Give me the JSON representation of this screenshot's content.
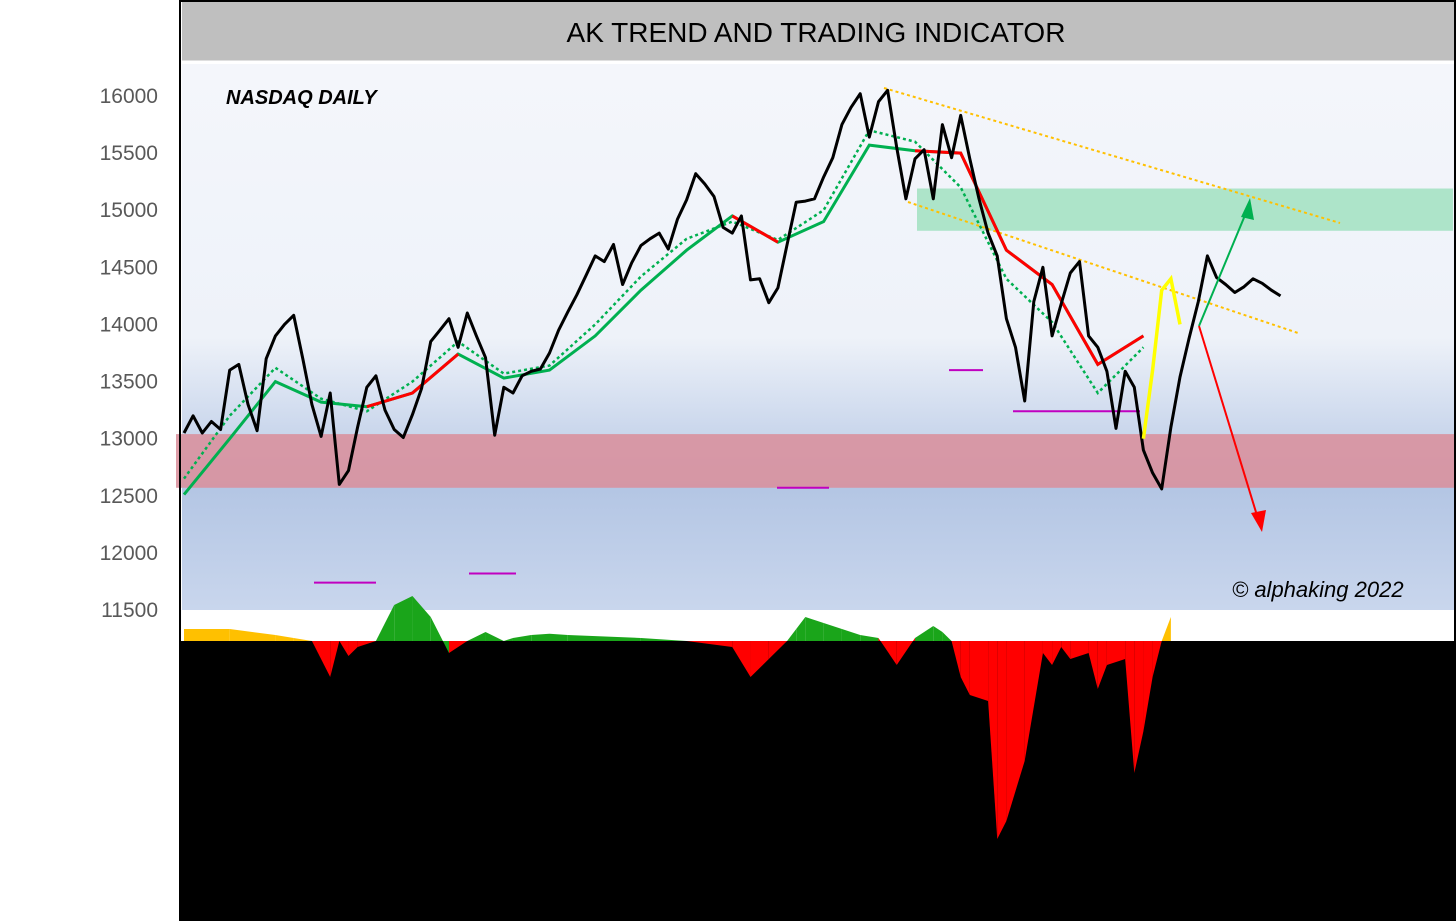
{
  "title": "AK TREND AND TRADING INDICATOR",
  "chart_data": {
    "type": "line",
    "title": "AK TREND AND TRADING INDICATOR",
    "subtitle": "NASDAQ DAILY",
    "annotation": "© alphaking 2022",
    "ylim": [
      11500,
      16300
    ],
    "yticks": [
      "16000",
      "15500",
      "15000",
      "14500",
      "14000",
      "13500",
      "13000",
      "12500",
      "12000",
      "11500"
    ],
    "grid": false,
    "legend": "none",
    "colors": {
      "price": "#000000",
      "trend_up": "#00b050",
      "trend_down": "#ff0000",
      "projection": "#ffff00",
      "channel": "#ffc000",
      "support_band": "#d9909c",
      "resistance_band": "#a9e3c6",
      "osc_positive": "#1aa51a",
      "osc_negative": "#ff0000",
      "osc_neutral": "#ffc000",
      "marker": "#c000c0"
    },
    "zones": [
      {
        "name": "resistance",
        "y_from": 14820,
        "y_to": 15190
      },
      {
        "name": "support",
        "y_from": 12570,
        "y_to": 13040
      }
    ],
    "levels": [
      12570,
      13600,
      13240,
      11740,
      11820
    ],
    "series": [
      {
        "role": "price",
        "x": [
          0,
          2,
          4,
          6,
          8,
          10,
          12,
          14,
          16,
          18,
          20,
          22,
          24,
          26,
          28,
          30,
          32,
          34,
          36,
          38,
          40,
          42,
          44,
          46,
          48,
          50,
          52,
          54,
          56,
          58,
          60,
          62,
          64,
          66,
          68,
          70,
          72,
          74,
          76,
          78,
          80,
          82,
          84,
          86,
          88,
          90,
          92,
          94,
          96,
          98,
          100,
          102,
          104,
          106,
          108,
          110,
          112,
          114,
          116,
          118,
          120,
          122,
          124,
          126,
          128,
          130,
          132,
          134,
          136,
          138,
          140,
          142,
          144,
          146,
          148,
          150,
          152,
          154,
          156,
          158,
          160,
          162,
          164,
          166,
          168,
          170,
          172,
          174,
          176,
          178,
          180,
          182,
          184,
          186,
          188,
          190,
          192,
          194,
          196,
          198,
          200,
          202,
          204,
          206,
          208,
          210,
          212,
          214,
          216,
          218,
          220,
          222,
          224,
          226,
          228,
          230,
          232,
          234,
          236,
          238,
          240
        ],
        "values": [
          13050,
          13200,
          13050,
          13150,
          13080,
          13600,
          13650,
          13300,
          13070,
          13700,
          13900,
          14000,
          14080,
          13700,
          13300,
          13020,
          13400,
          12600,
          12720,
          13100,
          13450,
          13550,
          13250,
          13080,
          13010,
          13210,
          13440,
          13850,
          13950,
          14050,
          13800,
          14100,
          13900,
          13710,
          13030,
          13450,
          13400,
          13550,
          13590,
          13610,
          13750,
          13950,
          14110,
          14260,
          14430,
          14600,
          14550,
          14700,
          14350,
          14540,
          14690,
          14750,
          14800,
          14660,
          14920,
          15090,
          15320,
          15230,
          15120,
          14850,
          14800,
          14950,
          14390,
          14400,
          14190,
          14320,
          14700,
          15070,
          15080,
          15100,
          15290,
          15460,
          15750,
          15900,
          16020,
          15640,
          15950,
          16050,
          15550,
          15100,
          15450,
          15530,
          15100,
          15750,
          15460,
          15830,
          15450,
          15100,
          14800,
          14600,
          14050,
          13800,
          13330,
          14200,
          14500,
          13900,
          14180,
          14450,
          14550,
          13900,
          13800,
          13590,
          13090,
          13590,
          13450,
          12900,
          12700,
          12560,
          13100,
          13540,
          13880,
          14200,
          14600,
          14410,
          14350,
          14280,
          14330,
          14400,
          14360,
          14300,
          14250
        ]
      },
      {
        "role": "fast_trend",
        "x": [
          0,
          10,
          20,
          30,
          40,
          50,
          60,
          70,
          80,
          90,
          100,
          110,
          120,
          130,
          140,
          150,
          160,
          170,
          180,
          190,
          200,
          210
        ],
        "values": [
          12650,
          13200,
          13620,
          13350,
          13240,
          13500,
          13850,
          13570,
          13640,
          14000,
          14420,
          14750,
          14900,
          14740,
          15000,
          15700,
          15600,
          15200,
          14400,
          14020,
          13400,
          13800
        ]
      },
      {
        "role": "slow_trend",
        "x": [
          0,
          10,
          20,
          30,
          40,
          50,
          60,
          70,
          80,
          90,
          100,
          110,
          120,
          130,
          140,
          150,
          160,
          170,
          180,
          190,
          200,
          210
        ],
        "values": [
          12510,
          13000,
          13500,
          13320,
          13280,
          13400,
          13740,
          13530,
          13600,
          13900,
          14300,
          14650,
          14950,
          14720,
          14900,
          15570,
          15520,
          15500,
          14650,
          14350,
          13650,
          13900
        ]
      },
      {
        "role": "projection",
        "x": [
          210,
          212,
          214,
          216,
          218
        ],
        "values": [
          13000,
          13600,
          14300,
          14400,
          14000
        ]
      },
      {
        "role": "oscillator",
        "x": [
          0,
          10,
          20,
          24,
          28,
          32,
          34,
          36,
          38,
          42,
          46,
          50,
          54,
          58,
          62,
          66,
          70,
          72,
          76,
          80,
          84,
          100,
          110,
          120,
          124,
          128,
          132,
          134,
          136,
          140,
          144,
          148,
          152,
          156,
          160,
          164,
          166,
          168,
          170,
          172,
          176,
          178,
          180,
          184,
          188,
          190,
          192,
          194,
          198,
          200,
          202,
          206,
          208,
          210,
          212,
          214,
          216
        ],
        "values": [
          20,
          20,
          10,
          5,
          0,
          -60,
          0,
          -25,
          -10,
          0,
          60,
          75,
          40,
          -20,
          0,
          15,
          0,
          5,
          10,
          12,
          10,
          5,
          0,
          -10,
          -60,
          -30,
          0,
          20,
          40,
          30,
          20,
          10,
          5,
          -40,
          5,
          25,
          15,
          0,
          -60,
          -90,
          -100,
          -330,
          -300,
          -200,
          -20,
          -40,
          -10,
          -30,
          -20,
          -80,
          -40,
          -30,
          -220,
          -150,
          -60,
          0,
          40
        ]
      }
    ]
  }
}
